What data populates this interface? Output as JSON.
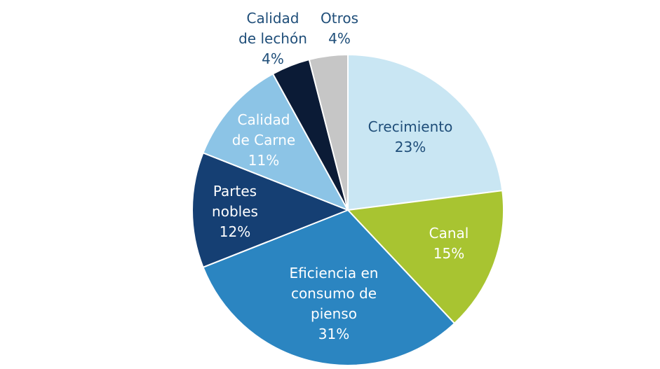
{
  "chart_data": {
    "type": "pie",
    "title": "",
    "start_angle_deg": 0,
    "direction": "clockwise",
    "slices": [
      {
        "label_lines": [
          "Crecimiento"
        ],
        "value_label": "23%",
        "value": 23,
        "color": "#c9e6f3",
        "text_color": "#1f4e79"
      },
      {
        "label_lines": [
          "Canal"
        ],
        "value_label": "15%",
        "value": 15,
        "color": "#a8c431",
        "text_color": "#ffffff"
      },
      {
        "label_lines": [
          "Eficiencia en",
          "consumo de",
          "pienso"
        ],
        "value_label": "31%",
        "value": 31,
        "color": "#2b85c1",
        "text_color": "#ffffff"
      },
      {
        "label_lines": [
          "Partes",
          "nobles"
        ],
        "value_label": "12%",
        "value": 12,
        "color": "#153f73",
        "text_color": "#ffffff"
      },
      {
        "label_lines": [
          "Calidad",
          "de Carne"
        ],
        "value_label": "11%",
        "value": 11,
        "color": "#8cc4e6",
        "text_color": "#ffffff"
      },
      {
        "label_lines": [
          "Calidad",
          "de lechón"
        ],
        "value_label": "4%",
        "value": 4,
        "color": "#0b1b36",
        "text_color": "#1f4e79"
      },
      {
        "label_lines": [
          "Otros"
        ],
        "value_label": "4%",
        "value": 4,
        "color": "#c6c6c6",
        "text_color": "#1f4e79"
      }
    ]
  }
}
